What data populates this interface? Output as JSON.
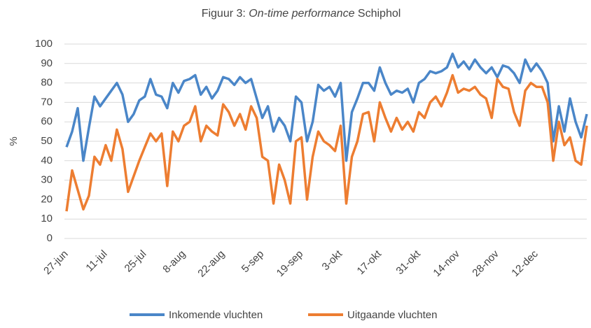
{
  "chart_data": {
    "type": "line",
    "title": [
      "Figuur 3: ",
      "On-time performance",
      " Schiphol"
    ],
    "y_label": "%",
    "categories": [
      "27-jun",
      null,
      null,
      null,
      null,
      null,
      null,
      "11-jul",
      null,
      null,
      null,
      null,
      null,
      null,
      "25-jul",
      null,
      null,
      null,
      null,
      null,
      null,
      "8-aug",
      null,
      null,
      null,
      null,
      null,
      null,
      "22-aug",
      null,
      null,
      null,
      null,
      null,
      null,
      "5-sep",
      null,
      null,
      null,
      null,
      null,
      null,
      "19-sep",
      null,
      null,
      null,
      null,
      null,
      null,
      "3-okt",
      null,
      null,
      null,
      null,
      null,
      null,
      "17-okt",
      null,
      null,
      null,
      null,
      null,
      null,
      "31-okt",
      null,
      null,
      null,
      null,
      null,
      null,
      "14-nov",
      null,
      null,
      null,
      null,
      null,
      null,
      "28-nov",
      null,
      null,
      null,
      null,
      null,
      null,
      "12-dec",
      null,
      null,
      null,
      null,
      null,
      null,
      null,
      null,
      null
    ],
    "series": [
      {
        "name": "Inkomende vluchten",
        "color": "#4a86c8",
        "values": [
          47,
          55,
          67,
          40,
          57,
          73,
          68,
          72,
          76,
          80,
          74,
          60,
          64,
          71,
          73,
          82,
          74,
          73,
          67,
          80,
          75,
          81,
          82,
          84,
          74,
          78,
          72,
          76,
          83,
          82,
          79,
          83,
          80,
          82,
          72,
          62,
          68,
          55,
          62,
          58,
          50,
          73,
          70,
          50,
          60,
          79,
          76,
          78,
          73,
          80,
          40,
          65,
          72,
          80,
          80,
          76,
          88,
          80,
          74,
          76,
          75,
          77,
          70,
          80,
          82,
          86,
          85,
          86,
          88,
          95,
          88,
          91,
          87,
          92,
          88,
          85,
          88,
          83,
          89,
          88,
          85,
          80,
          92,
          86,
          90,
          86,
          80,
          50,
          68,
          55,
          72,
          60,
          52,
          64
        ]
      },
      {
        "name": "Uitgaande vluchten",
        "color": "#ed7d31",
        "values": [
          14,
          35,
          25,
          15,
          22,
          42,
          38,
          48,
          40,
          56,
          46,
          24,
          32,
          40,
          47,
          54,
          50,
          54,
          27,
          55,
          50,
          58,
          60,
          68,
          50,
          58,
          55,
          53,
          69,
          65,
          58,
          64,
          56,
          68,
          62,
          42,
          40,
          18,
          38,
          30,
          18,
          50,
          52,
          20,
          42,
          55,
          50,
          48,
          45,
          58,
          18,
          42,
          50,
          64,
          65,
          50,
          70,
          62,
          55,
          62,
          56,
          60,
          55,
          65,
          62,
          70,
          73,
          68,
          75,
          84,
          75,
          77,
          76,
          78,
          74,
          72,
          62,
          82,
          78,
          77,
          65,
          58,
          76,
          80,
          78,
          78,
          70,
          40,
          60,
          48,
          52,
          40,
          38,
          58
        ]
      }
    ],
    "ylim": [
      0,
      100
    ],
    "yticks": [
      0,
      10,
      20,
      30,
      40,
      50,
      60,
      70,
      80,
      90,
      100
    ],
    "grid": true,
    "legend": "bottom"
  }
}
